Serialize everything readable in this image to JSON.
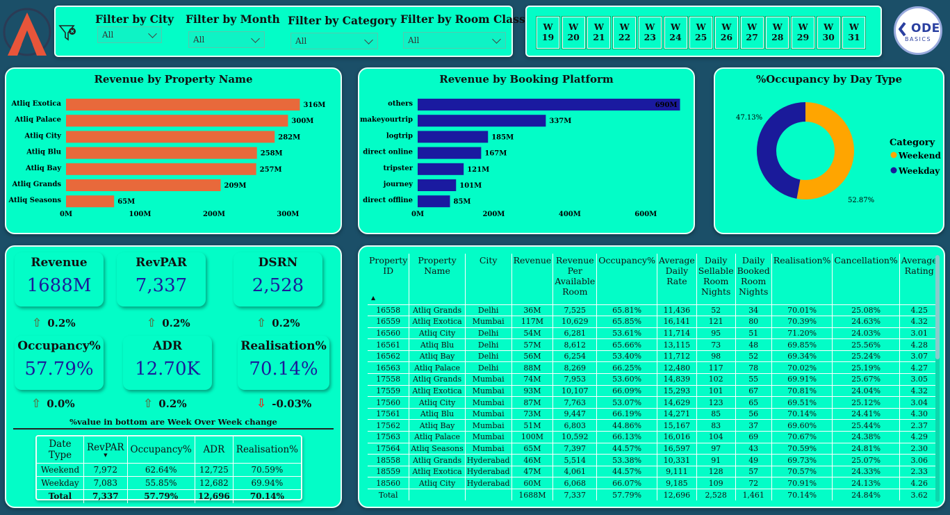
{
  "filters": {
    "city": {
      "label": "Filter by City",
      "value": "All"
    },
    "month": {
      "label": "Filter by Month",
      "value": "All"
    },
    "category": {
      "label": "Filter by Category",
      "value": "All"
    },
    "room_class": {
      "label": "Filter by Room Class",
      "value": "All"
    }
  },
  "weeks": [
    "W 19",
    "W 20",
    "W 21",
    "W 22",
    "W 23",
    "W 24",
    "W 25",
    "W 26",
    "W 27",
    "W 28",
    "W 29",
    "W 30",
    "W 31"
  ],
  "codebasics": {
    "line1": "ODE",
    "line2": "BASICS"
  },
  "chart_data": [
    {
      "type": "bar",
      "orientation": "horizontal",
      "title": "Revenue by Property Name",
      "categories": [
        "Atliq Exotica",
        "Atliq Palace",
        "Atliq City",
        "Atliq Blu",
        "Atliq Bay",
        "Atliq Grands",
        "Atliq Seasons"
      ],
      "values": [
        316,
        300,
        282,
        258,
        257,
        209,
        65
      ],
      "data_labels": [
        "316M",
        "300M",
        "282M",
        "258M",
        "257M",
        "209M",
        "65M"
      ],
      "x_ticks": [
        "0M",
        "100M",
        "200M",
        "300M"
      ],
      "xlim": [
        0,
        340
      ],
      "color": "#e8693b"
    },
    {
      "type": "bar",
      "orientation": "horizontal",
      "title": "Revenue by Booking Platform",
      "categories": [
        "others",
        "makeyourtrip",
        "logtrip",
        "direct online",
        "tripster",
        "journey",
        "direct offline"
      ],
      "values": [
        690,
        337,
        185,
        167,
        121,
        101,
        85
      ],
      "data_labels": [
        "690M",
        "337M",
        "185M",
        "167M",
        "121M",
        "101M",
        "85M"
      ],
      "x_ticks": [
        "0M",
        "200M",
        "400M",
        "600M"
      ],
      "xlim": [
        0,
        700
      ],
      "color": "#1a1aa0"
    },
    {
      "type": "pie",
      "title": "%Occupancy by Day Type",
      "donut": true,
      "legend_title": "Category",
      "slices": [
        {
          "name": "Weekend",
          "value": 52.87,
          "label": "52.87%",
          "color": "#ffa500"
        },
        {
          "name": "Weekday",
          "value": 47.13,
          "label": "47.13%",
          "color": "#1a1a9a"
        }
      ],
      "legend_position": "right"
    }
  ],
  "kpis": [
    {
      "title": "Revenue",
      "value": "1688M",
      "change": "0.2%",
      "dir": "up"
    },
    {
      "title": "RevPAR",
      "value": "7,337",
      "change": "0.2%",
      "dir": "up"
    },
    {
      "title": "DSRN",
      "value": "2,528",
      "change": "0.2%",
      "dir": "up"
    },
    {
      "title": "Occupancy%",
      "value": "57.79%",
      "change": "0.0%",
      "dir": "up"
    },
    {
      "title": "ADR",
      "value": "12.70K",
      "change": "0.2%",
      "dir": "up"
    },
    {
      "title": "Realisation%",
      "value": "70.14%",
      "change": "-0.03%",
      "dir": "down"
    }
  ],
  "kpi_note": "%value in bottom are Week Over Week change",
  "daytype_table": {
    "headers": [
      "Date Type",
      "RevPAR",
      "Occupancy%",
      "ADR",
      "Realisation%"
    ],
    "rows": [
      [
        "Weekend",
        "7,972",
        "62.64%",
        "12,725",
        "70.59%"
      ],
      [
        "Weekday",
        "7,083",
        "55.85%",
        "12,682",
        "69.94%"
      ],
      [
        "Total",
        "7,337",
        "57.79%",
        "12,696",
        "70.14%"
      ]
    ]
  },
  "property_table": {
    "headers": [
      "Property ID",
      "Property Name",
      "City",
      "Revenue",
      "Revenue Per Available Room",
      "Occupancy%",
      "Average Daily Rate",
      "Daily Sellable Room Nights",
      "Daily Booked Room Nights",
      "Realisation%",
      "Cancellation%",
      "Average Rating"
    ],
    "rows": [
      [
        "16558",
        "Atliq Grands",
        "Delhi",
        "36M",
        "7,525",
        "65.81%",
        "11,436",
        "52",
        "34",
        "70.01%",
        "25.08%",
        "4.25"
      ],
      [
        "16559",
        "Atliq Exotica",
        "Mumbai",
        "117M",
        "10,629",
        "65.85%",
        "16,141",
        "121",
        "80",
        "70.39%",
        "24.63%",
        "4.32"
      ],
      [
        "16560",
        "Atliq City",
        "Delhi",
        "54M",
        "6,281",
        "53.61%",
        "11,714",
        "95",
        "51",
        "71.20%",
        "24.03%",
        "3.01"
      ],
      [
        "16561",
        "Atliq Blu",
        "Delhi",
        "57M",
        "8,612",
        "65.66%",
        "13,115",
        "73",
        "48",
        "69.85%",
        "25.56%",
        "4.28"
      ],
      [
        "16562",
        "Atliq Bay",
        "Delhi",
        "56M",
        "6,254",
        "53.40%",
        "11,712",
        "98",
        "52",
        "69.34%",
        "25.24%",
        "3.07"
      ],
      [
        "16563",
        "Atliq Palace",
        "Delhi",
        "88M",
        "8,269",
        "66.25%",
        "12,480",
        "117",
        "78",
        "70.02%",
        "25.19%",
        "4.27"
      ],
      [
        "17558",
        "Atliq Grands",
        "Mumbai",
        "74M",
        "7,953",
        "53.60%",
        "14,839",
        "102",
        "55",
        "69.91%",
        "25.67%",
        "3.05"
      ],
      [
        "17559",
        "Atliq Exotica",
        "Mumbai",
        "93M",
        "10,107",
        "66.09%",
        "15,293",
        "101",
        "67",
        "70.81%",
        "24.04%",
        "4.32"
      ],
      [
        "17560",
        "Atliq City",
        "Mumbai",
        "87M",
        "7,763",
        "53.07%",
        "14,629",
        "123",
        "65",
        "69.51%",
        "25.12%",
        "3.04"
      ],
      [
        "17561",
        "Atliq Blu",
        "Mumbai",
        "73M",
        "9,447",
        "66.19%",
        "14,271",
        "85",
        "56",
        "70.14%",
        "24.41%",
        "4.30"
      ],
      [
        "17562",
        "Atliq Bay",
        "Mumbai",
        "51M",
        "6,803",
        "44.86%",
        "15,167",
        "83",
        "37",
        "69.60%",
        "25.44%",
        "2.37"
      ],
      [
        "17563",
        "Atliq Palace",
        "Mumbai",
        "100M",
        "10,592",
        "66.13%",
        "16,016",
        "104",
        "69",
        "70.67%",
        "24.38%",
        "4.29"
      ],
      [
        "17564",
        "Atliq Seasons",
        "Mumbai",
        "65M",
        "7,397",
        "44.57%",
        "16,597",
        "97",
        "43",
        "70.59%",
        "24.81%",
        "2.30"
      ],
      [
        "18558",
        "Atliq Grands",
        "Hyderabad",
        "46M",
        "5,514",
        "53.38%",
        "10,331",
        "91",
        "49",
        "69.73%",
        "25.07%",
        "3.06"
      ],
      [
        "18559",
        "Atliq Exotica",
        "Hyderabad",
        "47M",
        "4,061",
        "44.57%",
        "9,111",
        "128",
        "57",
        "70.57%",
        "24.33%",
        "2.33"
      ],
      [
        "18560",
        "Atliq City",
        "Hyderabad",
        "60M",
        "6,068",
        "66.07%",
        "9,185",
        "109",
        "72",
        "70.91%",
        "24.13%",
        "4.26"
      ]
    ],
    "total": [
      "Total",
      "",
      "",
      "1688M",
      "7,337",
      "57.79%",
      "12,696",
      "2,528",
      "1,461",
      "70.14%",
      "24.84%",
      "3.62"
    ]
  }
}
